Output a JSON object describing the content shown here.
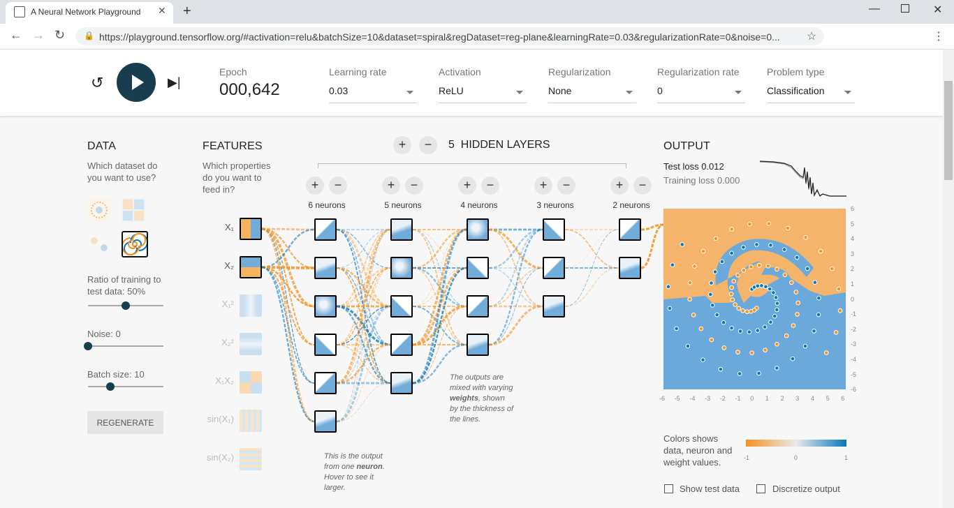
{
  "browser": {
    "tab_title": "A Neural Network Playground",
    "url": "https://playground.tensorflow.org/#activation=relu&batchSize=10&dataset=spiral&regDataset=reg-plane&learningRate=0.03&regularizationRate=0&noise=0..."
  },
  "header": {
    "epoch_label": "Epoch",
    "epoch_value": "000,642",
    "learning_rate": {
      "label": "Learning rate",
      "value": "0.03"
    },
    "activation": {
      "label": "Activation",
      "value": "ReLU"
    },
    "regularization": {
      "label": "Regularization",
      "value": "None"
    },
    "regularization_rate": {
      "label": "Regularization rate",
      "value": "0"
    },
    "problem_type": {
      "label": "Problem type",
      "value": "Classification"
    }
  },
  "data_panel": {
    "title": "DATA",
    "question": [
      "Which dataset do",
      "you want to use?"
    ],
    "ratio_label": [
      "Ratio of training to",
      "test data:"
    ],
    "ratio_value": "50%",
    "ratio_fraction": 0.5,
    "noise_label": "Noise:",
    "noise_value": "0",
    "noise_fraction": 0.0,
    "batch_label": "Batch size:",
    "batch_value": "10",
    "batch_fraction": 0.3,
    "regenerate_label": "REGENERATE"
  },
  "features_panel": {
    "title": "FEATURES",
    "question": [
      "Which properties",
      "do you want to",
      "feed in?"
    ],
    "features": [
      {
        "label": "X₁",
        "active": true
      },
      {
        "label": "X₂",
        "active": true
      },
      {
        "label": "X₁²",
        "active": false
      },
      {
        "label": "X₂²",
        "active": false
      },
      {
        "label": "X₁X₂",
        "active": false
      },
      {
        "label": "sin(X₁)",
        "active": false
      },
      {
        "label": "sin(X₂)",
        "active": false
      }
    ]
  },
  "network": {
    "hidden_layers_count": "5",
    "hidden_layers_label": "HIDDEN LAYERS",
    "layers": [
      {
        "label": "6 neurons",
        "count": 6
      },
      {
        "label": "5 neurons",
        "count": 5
      },
      {
        "label": "4 neurons",
        "count": 4
      },
      {
        "label": "3 neurons",
        "count": 3
      },
      {
        "label": "2 neurons",
        "count": 2
      }
    ],
    "note_weights": [
      "The outputs are",
      "mixed with varying",
      "weights",
      ", shown",
      "by the thickness of",
      "the lines."
    ],
    "note_neuron": [
      "This is the output",
      "from one ",
      "neuron",
      ".",
      "Hover to see it",
      "larger."
    ]
  },
  "output_panel": {
    "title": "OUTPUT",
    "test_loss_label": "Test loss",
    "test_loss_value": "0.012",
    "training_loss_label": "Training loss",
    "training_loss_value": "0.000",
    "x_ticks": [
      "-6",
      "-5",
      "-4",
      "-3",
      "-2",
      "-1",
      "0",
      "1",
      "2",
      "3",
      "4",
      "5",
      "6"
    ],
    "y_ticks": [
      "6",
      "5",
      "4",
      "3",
      "2",
      "1",
      "0",
      "-1",
      "-2",
      "-3",
      "-4",
      "-5",
      "-6"
    ],
    "legend_text": [
      "Colors shows",
      "data, neuron and",
      "weight values."
    ],
    "legend_ticks": [
      "-1",
      "0",
      "1"
    ],
    "show_test_data_label": "Show test data",
    "discretize_label": "Discretize output"
  },
  "colors": {
    "orange": "#f59322",
    "blue": "#0877bd",
    "dark_button": "#183d4e"
  }
}
